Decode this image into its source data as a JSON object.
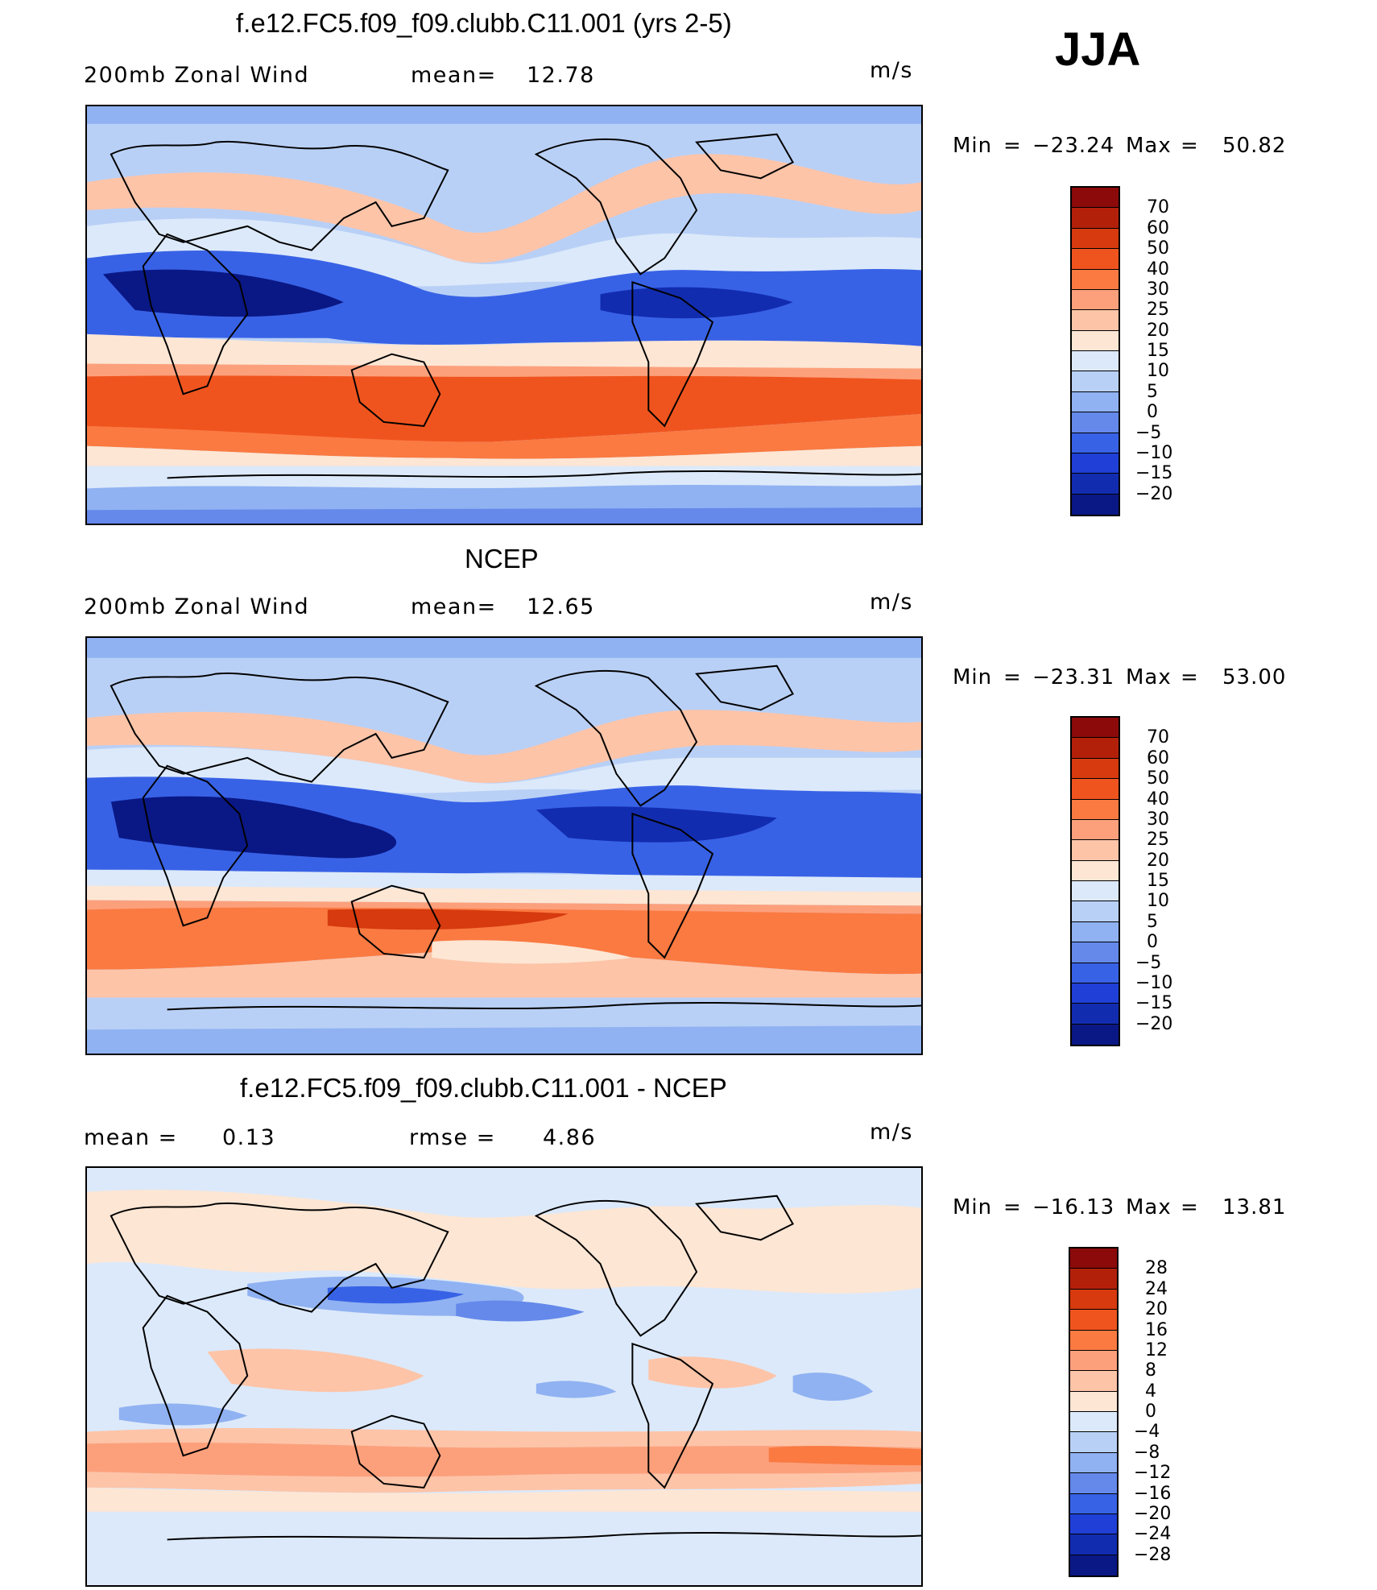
{
  "season": "JJA",
  "panels": [
    {
      "title": "f.e12.FC5.f09_f09.clubb.C11.001 (yrs 2-5)",
      "left_label": "200mb Zonal Wind",
      "mid_label": "mean=",
      "mid_value": "12.78",
      "units": "m/s",
      "min_label": "Min",
      "eq": "=",
      "min": "−23.24",
      "max_label": "Max",
      "max": "50.82",
      "levels": [
        "70",
        "60",
        "50",
        "40",
        "30",
        "25",
        "20",
        "15",
        "10",
        "5",
        "0",
        "−5",
        "−10",
        "−15",
        "−20"
      ],
      "colors": [
        "#8c0a0a",
        "#b3200a",
        "#d63a0e",
        "#f0541e",
        "#fa7a42",
        "#fca07c",
        "#fdc4a8",
        "#fde6d4",
        "#dce9fa",
        "#b9d0f6",
        "#90b2f2",
        "#6489ea",
        "#3862e6",
        "#1f3fd6",
        "#122cb0",
        "#0a1885"
      ]
    },
    {
      "title": "NCEP",
      "left_label": "200mb Zonal Wind",
      "mid_label": "mean=",
      "mid_value": "12.65",
      "units": "m/s",
      "min_label": "Min",
      "eq": "=",
      "min": "−23.31",
      "max_label": "Max",
      "max": "53.00",
      "levels": [
        "70",
        "60",
        "50",
        "40",
        "30",
        "25",
        "20",
        "15",
        "10",
        "5",
        "0",
        "−5",
        "−10",
        "−15",
        "−20"
      ],
      "colors": [
        "#8c0a0a",
        "#b3200a",
        "#d63a0e",
        "#f0541e",
        "#fa7a42",
        "#fca07c",
        "#fdc4a8",
        "#fde6d4",
        "#dce9fa",
        "#b9d0f6",
        "#90b2f2",
        "#6489ea",
        "#3862e6",
        "#1f3fd6",
        "#122cb0",
        "#0a1885"
      ]
    },
    {
      "title": "f.e12.FC5.f09_f09.clubb.C11.001 - NCEP",
      "left_label": "mean =",
      "left_value": "0.13",
      "mid_label": "rmse =",
      "mid_value": "4.86",
      "units": "m/s",
      "min_label": "Min",
      "eq": "=",
      "min": "−16.13",
      "max_label": "Max",
      "max": "13.81",
      "levels": [
        "28",
        "24",
        "20",
        "16",
        "12",
        "8",
        "4",
        "0",
        "−4",
        "−8",
        "−12",
        "−16",
        "−20",
        "−24",
        "−28"
      ],
      "colors": [
        "#8c0a0a",
        "#b3200a",
        "#d63a0e",
        "#f0541e",
        "#fa7a42",
        "#fca07c",
        "#fdc4a8",
        "#fde6d4",
        "#dce9fa",
        "#b9d0f6",
        "#90b2f2",
        "#6489ea",
        "#3862e6",
        "#1f3fd6",
        "#122cb0",
        "#0a1885"
      ]
    }
  ]
}
